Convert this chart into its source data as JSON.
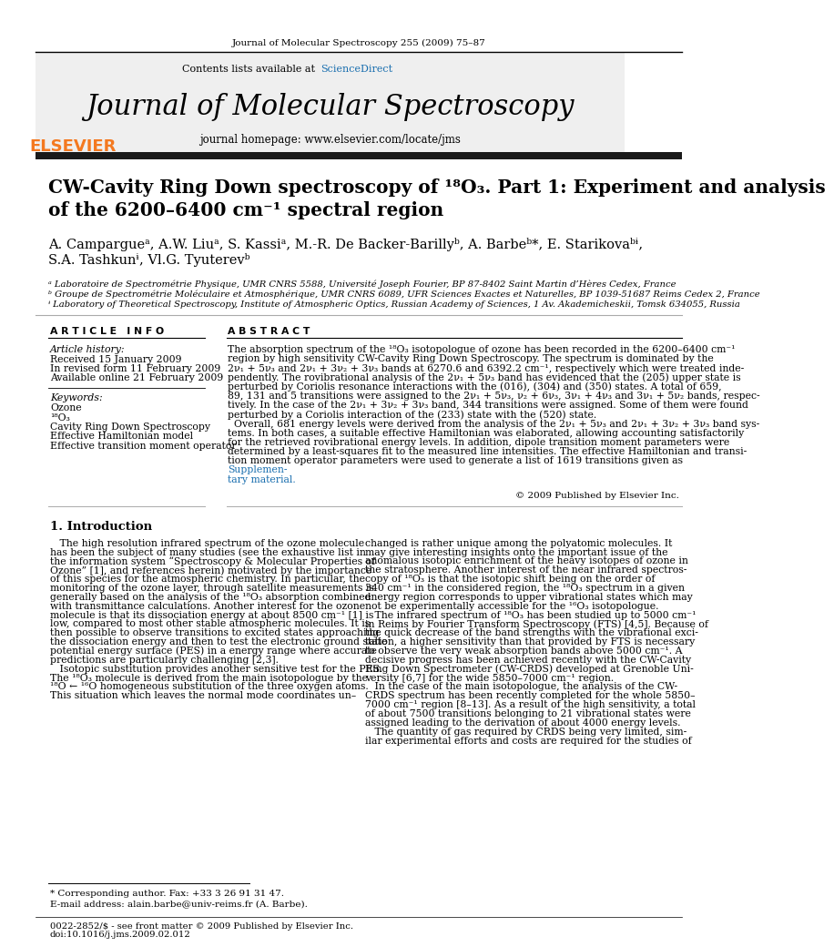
{
  "page_background": "#ffffff",
  "top_journal_ref": "Journal of Molecular Spectroscopy 255 (2009) 75–87",
  "journal_title": "Journal of Molecular Spectroscopy",
  "journal_homepage": "journal homepage: www.elsevier.com/locate/jms",
  "contents_line": "Contents lists available at ScienceDirect",
  "paper_title_line1": "CW-Cavity Ring Down spectroscopy of ¹⁸O₃. Part 1: Experiment and analysis",
  "paper_title_line2": "of the 6200–6400 cm⁻¹ spectral region",
  "author_line1": "A. Campargueᵃ, A.W. Liuᵃ, S. Kassiᵃ, M.-R. De Backer-Barillyᵇ, A. Barbeᵇ*, E. Starikovaᵇᶤ,",
  "author_line2": "S.A. Tashkunᶤ, Vl.G. Tyuterevᵇ",
  "affil_a": "ᵃ Laboratoire de Spectrométrie Physique, UMR CNRS 5588, Université Joseph Fourier, BP 87-8402 Saint Martin d’Hères Cedex, France",
  "affil_b": "ᵇ Groupe de Spectrométrie Moléculaire et Atmosphérique, UMR CNRS 6089, UFR Sciences Exactes et Naturelles, BP 1039-51687 Reims Cedex 2, France",
  "affil_c": "ᶤ Laboratory of Theoretical Spectroscopy, Institute of Atmospheric Optics, Russian Academy of Sciences, 1 Av. Akademicheskii, Tomsk 634055, Russia",
  "article_info_header": "A R T I C L E   I N F O",
  "abstract_header": "A B S T R A C T",
  "article_history_label": "Article history:",
  "received": "Received 15 January 2009",
  "revised": "In revised form 11 February 2009",
  "available": "Available online 21 February 2009",
  "keywords_label": "Keywords:",
  "keywords": [
    "Ozone",
    "¹⁸O₃",
    "Cavity Ring Down Spectroscopy",
    "Effective Hamiltonian model",
    "Effective transition moment operator"
  ],
  "abstract_lines": [
    "The absorption spectrum of the ¹⁸O₃ isotopologue of ozone has been recorded in the 6200–6400 cm⁻¹",
    "region by high sensitivity CW-Cavity Ring Down Spectroscopy. The spectrum is dominated by the",
    "2ν₁ + 5ν₃ and 2ν₁ + 3ν₂ + 3ν₃ bands at 6270.6 and 6392.2 cm⁻¹, respectively which were treated inde-",
    "pendently. The rovibrational analysis of the 2ν₁ + 5ν₃ band has evidenced that the (205) upper state is",
    "perturbed by Coriolis resonance interactions with the (016), (304) and (350) states. A total of 659,",
    "89, 131 and 5 transitions were assigned to the 2ν₁ + 5ν₃, ν₂ + 6ν₃, 3ν₁ + 4ν₃ and 3ν₁ + 5ν₂ bands, respec-",
    "tively. In the case of the 2ν₁ + 3ν₂ + 3ν₃ band, 344 transitions were assigned. Some of them were found",
    "perturbed by a Coriolis interaction of the (233) state with the (520) state.",
    "  Overall, 681 energy levels were derived from the analysis of the 2ν₁ + 5ν₃ and 2ν₁ + 3ν₂ + 3ν₃ band sys-",
    "tems. In both cases, a suitable effective Hamiltonian was elaborated, allowing accounting satisfactorily",
    "for the retrieved rovibrational energy levels. In addition, dipole transition moment parameters were",
    "determined by a least-squares fit to the measured line intensities. The effective Hamiltonian and transi-",
    "tion moment operator parameters were used to generate a list of 1619 transitions given as "
  ],
  "abstract_suppmat": "Supplemen-",
  "abstract_suppmat2": "tary material.",
  "copyright": "© 2009 Published by Elsevier Inc.",
  "intro_header": "1. Introduction",
  "intro_col1_lines": [
    "   The high resolution infrared spectrum of the ozone molecule",
    "has been the subject of many studies (see the exhaustive list in",
    "the information system “Spectroscopy & Molecular Properties of",
    "Ozone” [1], and references herein) motivated by the importance",
    "of this species for the atmospheric chemistry. In particular, the",
    "monitoring of the ozone layer, through satellite measurements is",
    "generally based on the analysis of the ¹⁸O₃ absorption combined",
    "with transmittance calculations. Another interest for the ozone",
    "molecule is that its dissociation energy at about 8500 cm⁻¹ [1] is",
    "low, compared to most other stable atmospheric molecules. It is",
    "then possible to observe transitions to excited states approaching",
    "the dissociation energy and then to test the electronic ground state",
    "potential energy surface (PES) in a energy range where accurate",
    "predictions are particularly challenging [2,3].",
    "   Isotopic substitution provides another sensitive test for the PES.",
    "The ¹⁸O₃ molecule is derived from the main isotopologue by the",
    "¹⁸O ← ¹⁶O homogeneous substitution of the three oxygen atoms.",
    "This situation which leaves the normal mode coordinates un–"
  ],
  "intro_col2_lines": [
    "changed is rather unique among the polyatomic molecules. It",
    "may give interesting insights onto the important issue of the",
    "anomalous isotopic enrichment of the heavy isotopes of ozone in",
    "the stratosphere. Another interest of the near infrared spectros-",
    "copy of ¹⁸O₃ is that the isotopic shift being on the order of",
    "340 cm⁻¹ in the considered region, the ¹⁸O₃ spectrum in a given",
    "energy region corresponds to upper vibrational states which may",
    "not be experimentally accessible for the ¹⁶O₃ isotopologue.",
    "   The infrared spectrum of ¹⁸O₃ has been studied up to 5000 cm⁻¹",
    "in Reims by Fourier Transform Spectroscopy (FTS) [4,5]. Because of",
    "the quick decrease of the band strengths with the vibrational exci-",
    "tation, a higher sensitivity than that provided by FTS is necessary",
    "to observe the very weak absorption bands above 5000 cm⁻¹. A",
    "decisive progress has been achieved recently with the CW-Cavity",
    "Ring Down Spectrometer (CW-CRDS) developed at Grenoble Uni-",
    "versity [6,7] for the wide 5850–7000 cm⁻¹ region.",
    "   In the case of the main isotopologue, the analysis of the CW-",
    "CRDS spectrum has been recently completed for the whole 5850–",
    "7000 cm⁻¹ region [8–13]. As a result of the high sensitivity, a total",
    "of about 7500 transitions belonging to 21 vibrational states were",
    "assigned leading to the derivation of about 4000 energy levels.",
    "   The quantity of gas required by CRDS being very limited, sim-",
    "ilar experimental efforts and costs are required for the studies of"
  ],
  "footnote_star": "* Corresponding author. Fax: +33 3 26 91 31 47.",
  "footnote_email": "E-mail address: alain.barbe@univ-reims.fr (A. Barbe).",
  "footer_left": "0022-2852/$ - see front matter © 2009 Published by Elsevier Inc.",
  "footer_doi": "doi:10.1016/j.jms.2009.02.012",
  "header_bg": "#efefef",
  "thick_line_color": "#1a1a1a",
  "elsevier_orange": "#f47920",
  "sciencedirect_blue": "#1a6faf",
  "suppmat_blue": "#1a6faf"
}
